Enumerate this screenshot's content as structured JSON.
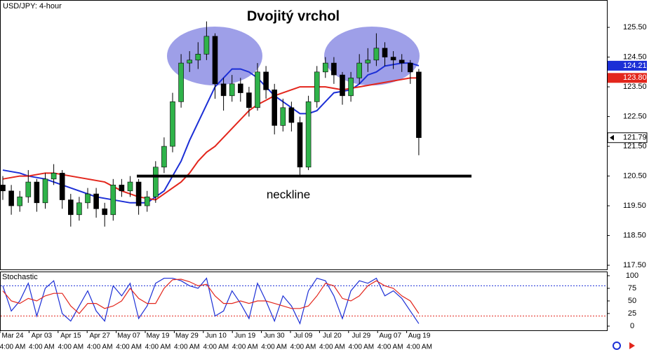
{
  "chart_data": [
    {
      "type": "candlestick",
      "title": "USD/JPY: 4-hour",
      "annotation": "Dvojitý vrchol",
      "neckline_label": "neckline",
      "neckline_level": 120.5,
      "up_color": "#2fb34a",
      "down_color": "#000000",
      "open": [
        120.2,
        120.0,
        119.5,
        119.8,
        120.3,
        119.6,
        120.4,
        120.6,
        119.7,
        119.2,
        119.6,
        119.9,
        119.4,
        119.2,
        120.2,
        120.0,
        120.3,
        119.5,
        119.8,
        120.8,
        121.5,
        123.0,
        124.3,
        124.4,
        124.6,
        125.2,
        123.6,
        123.2,
        123.6,
        123.3,
        122.8,
        124.0,
        123.4,
        122.2,
        122.8,
        122.3,
        120.8,
        123.0,
        124.0,
        124.3,
        123.9,
        123.2,
        123.8,
        124.3,
        124.4,
        124.8,
        124.5,
        124.4,
        124.3,
        124.0
      ],
      "high": [
        120.5,
        120.2,
        120.0,
        120.7,
        120.4,
        120.6,
        120.9,
        120.7,
        119.9,
        119.8,
        120.1,
        120.1,
        119.6,
        120.4,
        120.4,
        120.5,
        120.4,
        120.0,
        121.0,
        121.8,
        123.3,
        124.6,
        124.7,
        125.0,
        125.7,
        125.3,
        123.8,
        123.9,
        123.8,
        123.5,
        124.3,
        124.2,
        123.6,
        123.1,
        123.0,
        122.5,
        123.2,
        124.2,
        124.5,
        124.5,
        124.0,
        124.0,
        124.6,
        124.8,
        125.3,
        125.0,
        124.7,
        124.6,
        124.4,
        124.1
      ],
      "low": [
        119.7,
        119.2,
        119.3,
        119.6,
        119.3,
        119.4,
        120.2,
        119.4,
        118.8,
        119.0,
        119.4,
        119.1,
        118.8,
        119.0,
        119.8,
        119.8,
        119.2,
        119.3,
        119.6,
        120.6,
        121.3,
        122.8,
        124.0,
        124.1,
        124.4,
        123.1,
        122.7,
        123.0,
        123.0,
        122.5,
        122.7,
        123.1,
        121.9,
        122.0,
        122.0,
        120.5,
        120.7,
        122.8,
        123.8,
        123.6,
        122.9,
        123.0,
        123.6,
        124.0,
        124.2,
        124.2,
        124.1,
        124.0,
        123.6,
        121.2
      ],
      "close": [
        120.0,
        119.5,
        119.8,
        120.3,
        119.6,
        120.4,
        120.6,
        119.7,
        119.2,
        119.6,
        119.9,
        119.4,
        119.2,
        120.2,
        120.0,
        120.3,
        119.5,
        119.8,
        120.8,
        121.5,
        123.0,
        124.3,
        124.4,
        124.6,
        125.2,
        123.6,
        123.2,
        123.6,
        123.3,
        122.8,
        124.0,
        123.4,
        122.2,
        122.8,
        122.3,
        120.8,
        123.0,
        124.0,
        124.3,
        123.9,
        123.2,
        123.8,
        124.3,
        124.4,
        124.8,
        124.5,
        124.4,
        124.3,
        124.0,
        121.79
      ],
      "series": [
        {
          "color": "#1c2fd6",
          "values": [
            120.7,
            120.65,
            120.6,
            120.5,
            120.45,
            120.4,
            120.3,
            120.2,
            120.1,
            120.0,
            119.9,
            119.8,
            119.75,
            119.7,
            119.65,
            119.6,
            119.6,
            119.6,
            119.8,
            120.0,
            120.5,
            121.0,
            121.7,
            122.3,
            122.9,
            123.5,
            123.8,
            124.1,
            124.1,
            124.0,
            123.8,
            123.5,
            123.2,
            123.0,
            122.8,
            122.6,
            122.6,
            122.7,
            123.0,
            123.3,
            123.35,
            123.4,
            123.6,
            123.9,
            124.0,
            124.2,
            124.25,
            124.3,
            124.3,
            124.21
          ],
          "last": {
            "value": 124.21,
            "label": "124.21"
          }
        },
        {
          "color": "#e3261c",
          "values": [
            120.4,
            120.45,
            120.5,
            120.5,
            120.55,
            120.6,
            120.6,
            120.55,
            120.5,
            120.45,
            120.4,
            120.35,
            120.3,
            120.15,
            120.0,
            119.9,
            119.8,
            119.75,
            119.7,
            119.9,
            120.1,
            120.3,
            120.6,
            121.0,
            121.3,
            121.5,
            121.8,
            122.1,
            122.4,
            122.7,
            122.9,
            123.05,
            123.2,
            123.3,
            123.4,
            123.5,
            123.5,
            123.5,
            123.5,
            123.45,
            123.4,
            123.45,
            123.5,
            123.55,
            123.6,
            123.65,
            123.7,
            123.75,
            123.8,
            123.8
          ],
          "last": {
            "value": 123.8,
            "label": "123.80"
          }
        }
      ],
      "last_price": {
        "value": 121.79,
        "label": "121.79"
      },
      "ylim": [
        117.36,
        126.42
      ],
      "yticks": [
        {
          "value": 117.5,
          "label": "117.50"
        },
        {
          "value": 118.5,
          "label": "118.50"
        },
        {
          "value": 119.5,
          "label": "119.50"
        },
        {
          "value": 120.5,
          "label": "120.50"
        },
        {
          "value": 121.5,
          "label": "121.50"
        },
        {
          "value": 122.5,
          "label": "122.50"
        },
        {
          "value": 123.5,
          "label": "123.50"
        },
        {
          "value": 124.5,
          "label": "124.50"
        },
        {
          "value": 125.5,
          "label": "125.50"
        }
      ],
      "xtick_labels": [
        [
          "Mar 24",
          "4:00 AM"
        ],
        [
          "Apr 03",
          "4:00 AM"
        ],
        [
          "Apr 15",
          "4:00 AM"
        ],
        [
          "Apr 27",
          "4:00 AM"
        ],
        [
          "May 07",
          "4:00 AM"
        ],
        [
          "May 19",
          "4:00 AM"
        ],
        [
          "May 29",
          "4:00 AM"
        ],
        [
          "Jun 10",
          "4:00 AM"
        ],
        [
          "Jun 19",
          "4:00 AM"
        ],
        [
          "Jun 30",
          "4:00 AM"
        ],
        [
          "Jul 09",
          "4:00 AM"
        ],
        [
          "Jul 20",
          "4:00 AM"
        ],
        [
          "Jul 29",
          "4:00 AM"
        ],
        [
          "Aug 07",
          "4:00 AM"
        ],
        [
          "Aug 19",
          "4:00 AM"
        ]
      ]
    },
    {
      "type": "stochastic",
      "title": "Stochastic",
      "series": [
        {
          "color": "#1c2fd6",
          "values": [
            80,
            30,
            50,
            85,
            20,
            75,
            90,
            25,
            10,
            40,
            70,
            30,
            10,
            80,
            60,
            85,
            15,
            40,
            85,
            95,
            95,
            90,
            80,
            75,
            95,
            20,
            30,
            70,
            45,
            15,
            85,
            50,
            10,
            60,
            40,
            5,
            70,
            95,
            90,
            60,
            15,
            70,
            90,
            85,
            95,
            60,
            70,
            55,
            30,
            5
          ]
        },
        {
          "color": "#e3261c",
          "values": [
            70,
            50,
            45,
            55,
            50,
            60,
            65,
            65,
            40,
            25,
            45,
            45,
            35,
            40,
            50,
            75,
            55,
            45,
            45,
            75,
            92,
            93,
            88,
            80,
            83,
            60,
            45,
            45,
            50,
            45,
            50,
            50,
            45,
            40,
            35,
            35,
            40,
            60,
            85,
            80,
            55,
            50,
            60,
            80,
            90,
            80,
            75,
            60,
            50,
            25
          ]
        }
      ],
      "levels": [
        {
          "value": 80,
          "color": "#1c2fd6"
        },
        {
          "value": 20,
          "color": "#e3261c"
        }
      ],
      "ylim": [
        -8.3,
        108.3
      ],
      "yticks": [
        0,
        25,
        50,
        75,
        100
      ]
    }
  ]
}
